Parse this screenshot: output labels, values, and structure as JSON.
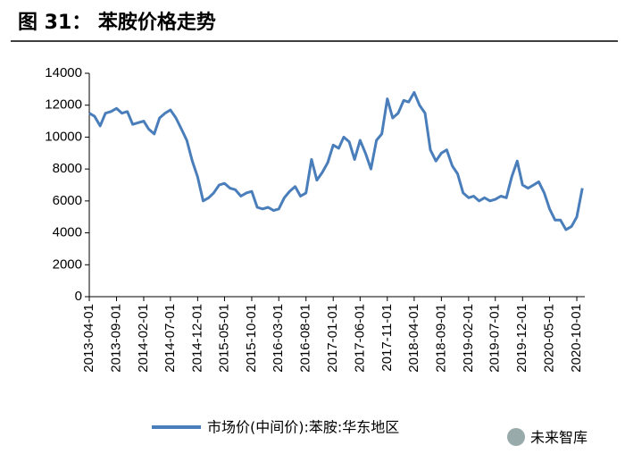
{
  "chart_data": {
    "type": "line",
    "title": "图 31： 苯胺价格走势",
    "x": [
      "2013-04-01",
      "2013-05-01",
      "2013-06-01",
      "2013-07-01",
      "2013-08-01",
      "2013-09-01",
      "2013-10-01",
      "2013-11-01",
      "2013-12-01",
      "2014-01-01",
      "2014-02-01",
      "2014-03-01",
      "2014-04-01",
      "2014-05-01",
      "2014-06-01",
      "2014-07-01",
      "2014-08-01",
      "2014-09-01",
      "2014-10-01",
      "2014-11-01",
      "2014-12-01",
      "2015-01-01",
      "2015-02-01",
      "2015-03-01",
      "2015-04-01",
      "2015-05-01",
      "2015-06-01",
      "2015-07-01",
      "2015-08-01",
      "2015-09-01",
      "2015-10-01",
      "2015-11-01",
      "2015-12-01",
      "2016-01-01",
      "2016-02-01",
      "2016-03-01",
      "2016-04-01",
      "2016-05-01",
      "2016-06-01",
      "2016-07-01",
      "2016-08-01",
      "2016-09-01",
      "2016-10-01",
      "2016-11-01",
      "2016-12-01",
      "2017-01-01",
      "2017-02-01",
      "2017-03-01",
      "2017-04-01",
      "2017-05-01",
      "2017-06-01",
      "2017-07-01",
      "2017-08-01",
      "2017-09-01",
      "2017-10-01",
      "2017-11-01",
      "2017-12-01",
      "2018-01-01",
      "2018-02-01",
      "2018-03-01",
      "2018-04-01",
      "2018-05-01",
      "2018-06-01",
      "2018-07-01",
      "2018-08-01",
      "2018-09-01",
      "2018-10-01",
      "2018-11-01",
      "2018-12-01",
      "2019-01-01",
      "2019-02-01",
      "2019-03-01",
      "2019-04-01",
      "2019-05-01",
      "2019-06-01",
      "2019-07-01",
      "2019-08-01",
      "2019-09-01",
      "2019-10-01",
      "2019-11-01",
      "2019-12-01",
      "2020-01-01",
      "2020-02-01",
      "2020-03-01",
      "2020-04-01",
      "2020-05-01",
      "2020-06-01",
      "2020-07-01",
      "2020-08-01",
      "2020-09-01",
      "2020-10-01",
      "2020-11-01"
    ],
    "series": [
      {
        "name": "市场价(中间价):苯胺:华东地区",
        "color": "#4a7ebb",
        "values": [
          11500,
          11300,
          10700,
          11500,
          11600,
          11800,
          11500,
          11600,
          10800,
          10900,
          11000,
          10500,
          10200,
          11200,
          11500,
          11700,
          11200,
          10500,
          9800,
          8500,
          7500,
          6000,
          6200,
          6500,
          7000,
          7100,
          6800,
          6700,
          6300,
          6500,
          6600,
          5600,
          5500,
          5600,
          5400,
          5500,
          6200,
          6600,
          6900,
          6300,
          6500,
          8600,
          7300,
          7800,
          8400,
          9500,
          9300,
          10000,
          9700,
          8600,
          9800,
          9000,
          8000,
          9800,
          10200,
          12400,
          11200,
          11500,
          12300,
          12200,
          12800,
          12000,
          11500,
          9200,
          8500,
          9000,
          9200,
          8200,
          7700,
          6500,
          6200,
          6300,
          6000,
          6200,
          6000,
          6100,
          6300,
          6200,
          7500,
          8500,
          7000,
          6800,
          7000,
          7200,
          6500,
          5500,
          4800,
          4800,
          4200,
          4400,
          5000,
          6800
        ]
      }
    ],
    "xlim": [
      "2013-04-01",
      "2020-11-15"
    ],
    "xticks": [
      "2013-04-01",
      "2013-09-01",
      "2014-02-01",
      "2014-07-01",
      "2014-12-01",
      "2015-05-01",
      "2015-10-01",
      "2016-03-01",
      "2016-08-01",
      "2017-01-01",
      "2017-06-01",
      "2017-11-01",
      "2018-04-01",
      "2018-09-01",
      "2019-02-01",
      "2019-07-01",
      "2019-12-01",
      "2020-05-01",
      "2020-10-01"
    ],
    "ylim": [
      0,
      14000
    ],
    "yticks": [
      0,
      2000,
      4000,
      6000,
      8000,
      10000,
      12000,
      14000
    ],
    "watermark": "未来智库"
  }
}
